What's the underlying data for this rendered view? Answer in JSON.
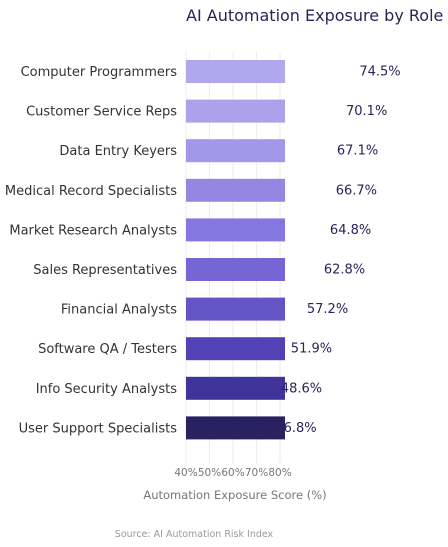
{
  "chart_data": {
    "type": "bar",
    "orientation": "horizontal",
    "title": "AI Automation Exposure by Role",
    "categories": [
      "Computer Programmers",
      "Customer Service Reps",
      "Data Entry Keyers",
      "Medical Record Specialists",
      "Market Research Analysts",
      "Sales Representatives",
      "Financial Analysts",
      "Software QA / Testers",
      "Info Security Analysts",
      "User Support Specialists"
    ],
    "values": [
      74.5,
      70.1,
      67.1,
      66.7,
      64.8,
      62.8,
      57.2,
      51.9,
      48.6,
      46.8
    ],
    "value_labels": [
      "74.5%",
      "70.1%",
      "67.1%",
      "66.7%",
      "64.8%",
      "62.8%",
      "57.2%",
      "51.9%",
      "48.6%",
      "46.8%"
    ],
    "xlabel": "Automation Exposure Score (%)",
    "ylabel": "",
    "xticks": [
      "40%",
      "50%",
      "60%",
      "70%",
      "80%"
    ],
    "xlim": [
      40,
      80
    ],
    "grid": true,
    "bar_colors": [
      "#b0a7ec",
      "#aba2eb",
      "#a297e8",
      "#9487e1",
      "#8676e0",
      "#7566d4",
      "#6454c6",
      "#5242b6",
      "#40349a",
      "#2a2160"
    ],
    "source": "Source: AI Automation Risk Index"
  }
}
